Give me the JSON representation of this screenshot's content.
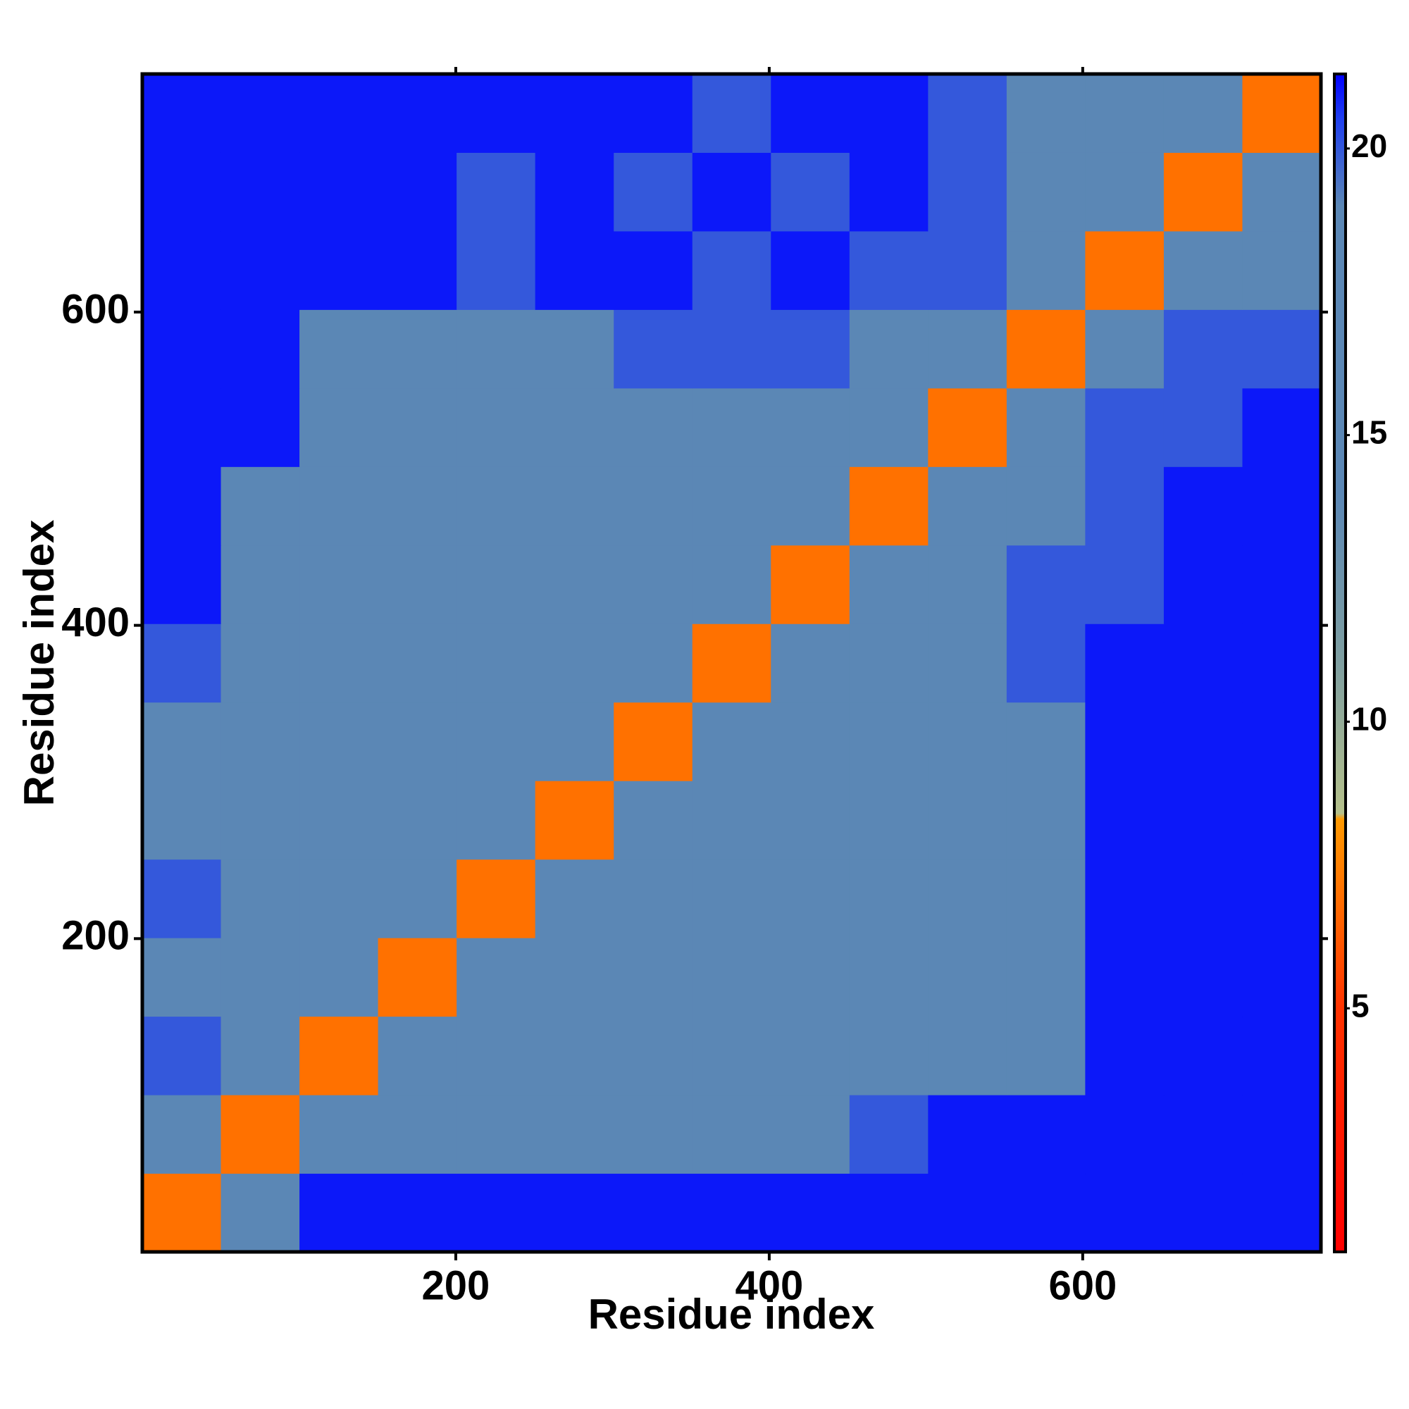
{
  "chart_data": {
    "type": "heatmap",
    "xlabel": "Residue index",
    "ylabel": "Residue index",
    "xlim": [
      0,
      752
    ],
    "ylim": [
      0,
      752
    ],
    "xticks": [
      200,
      400,
      600
    ],
    "yticks": [
      200,
      400,
      600
    ],
    "values": [
      [
        7,
        18,
        21,
        21,
        21,
        21,
        21,
        21,
        21,
        21,
        21,
        21,
        21,
        21,
        21
      ],
      [
        19,
        7,
        17,
        17,
        17,
        17,
        17,
        18,
        18,
        20,
        21,
        21,
        21,
        21,
        21
      ],
      [
        20,
        18,
        7,
        16,
        17,
        17,
        17,
        16,
        17,
        18,
        18,
        18,
        21,
        21,
        21
      ],
      [
        19,
        17,
        15,
        7,
        15,
        17,
        17,
        17,
        17,
        18,
        18,
        18,
        21,
        21,
        21
      ],
      [
        20,
        17,
        17,
        15,
        7,
        15,
        17,
        17,
        17,
        18,
        18,
        17,
        21,
        21,
        21
      ],
      [
        19,
        17,
        17,
        17,
        15,
        7,
        15,
        17,
        16,
        18,
        18,
        18,
        21,
        21,
        21
      ],
      [
        19,
        17,
        17,
        17,
        17,
        15,
        7,
        15,
        16,
        17,
        18,
        19,
        21,
        21,
        21
      ],
      [
        20,
        17,
        17,
        17,
        17,
        16,
        15,
        7,
        15,
        17,
        18,
        20,
        21,
        21,
        21
      ],
      [
        21,
        17,
        17,
        17,
        17,
        17,
        16,
        15,
        7,
        17,
        19,
        20,
        20,
        21,
        21
      ],
      [
        21,
        19,
        18,
        17,
        17,
        17,
        17,
        17,
        16,
        7,
        18,
        19,
        20,
        21,
        21
      ],
      [
        21,
        21,
        18,
        18,
        19,
        19,
        18,
        18,
        19,
        18,
        7,
        17,
        20,
        20,
        21
      ],
      [
        21,
        21,
        19,
        18,
        18,
        19,
        20,
        20,
        20,
        19,
        16,
        7,
        19,
        20,
        20
      ],
      [
        21,
        21,
        21,
        21,
        20,
        21,
        21,
        20,
        21,
        20,
        20,
        18,
        7,
        16,
        17
      ],
      [
        21,
        21,
        21,
        21,
        20,
        21,
        20,
        21,
        20,
        21,
        20,
        19,
        16,
        7,
        16
      ],
      [
        21,
        21,
        21,
        21,
        21,
        21,
        21,
        20,
        21,
        21,
        20,
        19,
        17,
        16,
        7
      ]
    ],
    "zlim": [
      0.75,
      21.3
    ],
    "zticks": [
      5,
      10,
      15,
      20
    ],
    "colorscale": [
      {
        "value": 0.75,
        "color": "#ff0000"
      },
      {
        "value": 5,
        "color": "#ff3300"
      },
      {
        "value": 8.3,
        "color": "#ff9900"
      },
      {
        "value": 8.4,
        "color": "#b5c08a"
      },
      {
        "value": 11,
        "color": "#7f9fa0"
      },
      {
        "value": 14,
        "color": "#5b87b5"
      },
      {
        "value": 19,
        "color": "#5b87b5"
      },
      {
        "value": 20.5,
        "color": "#2040ee"
      },
      {
        "value": 21.3,
        "color": "#0000ff"
      }
    ]
  }
}
